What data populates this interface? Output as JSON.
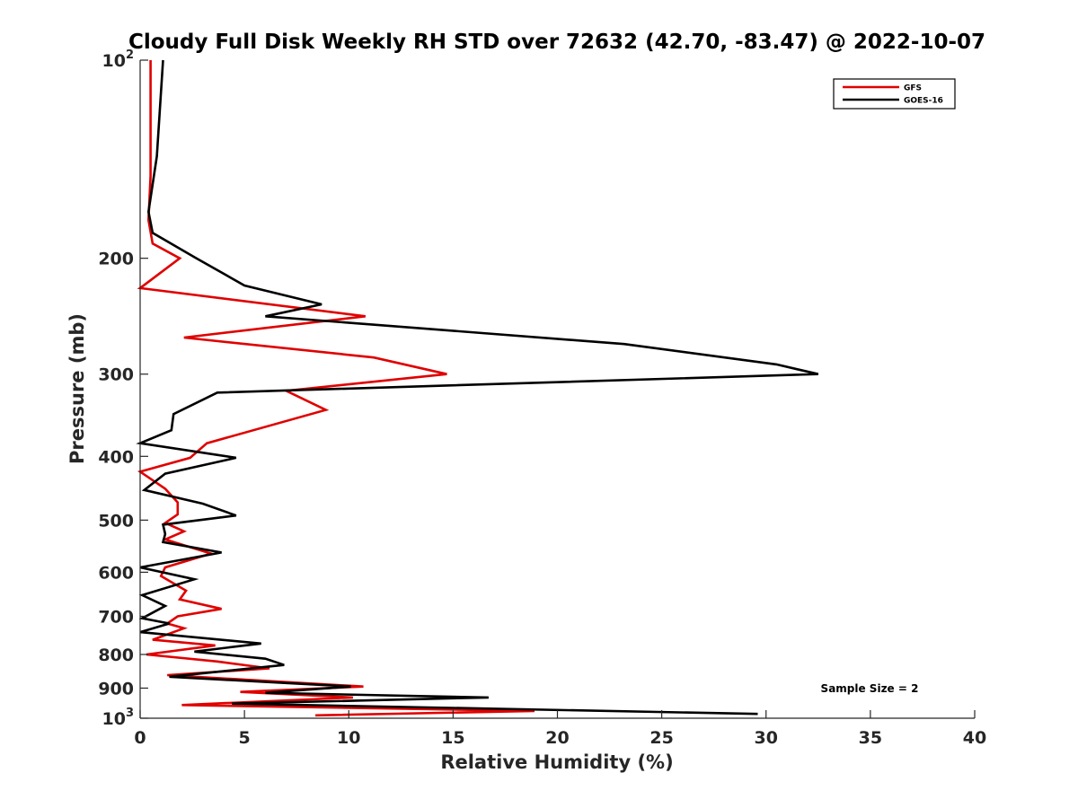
{
  "chart_data": {
    "type": "line",
    "title": "Cloudy Full Disk Weekly RH STD over 72632 (42.70, -83.47) @ 2022-10-07",
    "xlabel": "Relative Humidity (%)",
    "ylabel": "Pressure (mb)",
    "xlim": [
      0,
      40
    ],
    "ylim": [
      100,
      1000
    ],
    "y_scale": "log",
    "y_reversed": true,
    "grid": false,
    "legend_position": "top-right",
    "x_ticks": [
      "0",
      "5",
      "10",
      "15",
      "20",
      "25",
      "30",
      "35",
      "40"
    ],
    "y_ticks": [
      {
        "value": 100,
        "label": "10",
        "sup": "2"
      },
      {
        "value": 200,
        "label": "200"
      },
      {
        "value": 300,
        "label": "300"
      },
      {
        "value": 400,
        "label": "400"
      },
      {
        "value": 500,
        "label": "500"
      },
      {
        "value": 600,
        "label": "600"
      },
      {
        "value": 700,
        "label": "700"
      },
      {
        "value": 800,
        "label": "800"
      },
      {
        "value": 900,
        "label": "900"
      },
      {
        "value": 1000,
        "label": "10",
        "sup": "3"
      }
    ],
    "annotation": "Sample Size = 2",
    "series": [
      {
        "name": "GFS",
        "color": "#e00000",
        "points": [
          [
            0.5,
            100
          ],
          [
            0.5,
            150
          ],
          [
            0.4,
            175
          ],
          [
            0.6,
            190
          ],
          [
            1.9,
            200
          ],
          [
            0.0,
            222
          ],
          [
            10.8,
            245
          ],
          [
            2.1,
            264
          ],
          [
            11.2,
            283
          ],
          [
            14.7,
            300
          ],
          [
            7.0,
            318
          ],
          [
            8.9,
            340
          ],
          [
            3.2,
            382
          ],
          [
            2.4,
            402
          ],
          [
            0.0,
            422
          ],
          [
            1.2,
            448
          ],
          [
            1.8,
            470
          ],
          [
            1.8,
            490
          ],
          [
            1.2,
            505
          ],
          [
            2.1,
            520
          ],
          [
            1.2,
            535
          ],
          [
            3.4,
            562
          ],
          [
            1.2,
            590
          ],
          [
            1.0,
            608
          ],
          [
            2.2,
            640
          ],
          [
            1.9,
            660
          ],
          [
            3.9,
            682
          ],
          [
            1.8,
            700
          ],
          [
            1.3,
            718
          ],
          [
            2.1,
            730
          ],
          [
            0.6,
            760
          ],
          [
            3.6,
            775
          ],
          [
            0.3,
            800
          ],
          [
            3.7,
            820
          ],
          [
            6.2,
            840
          ],
          [
            1.3,
            860
          ],
          [
            10.7,
            895
          ],
          [
            4.8,
            912
          ],
          [
            10.2,
            930
          ],
          [
            2.0,
            955
          ],
          [
            18.9,
            975
          ],
          [
            8.4,
            990
          ]
        ]
      },
      {
        "name": "GOES-16",
        "color": "#000000",
        "points": [
          [
            1.1,
            100
          ],
          [
            0.8,
            140
          ],
          [
            0.4,
            170
          ],
          [
            0.6,
            183
          ],
          [
            2.7,
            200
          ],
          [
            5.0,
            220
          ],
          [
            8.7,
            235
          ],
          [
            6.0,
            245
          ],
          [
            23.2,
            270
          ],
          [
            30.5,
            290
          ],
          [
            32.5,
            300
          ],
          [
            3.7,
            320
          ],
          [
            1.6,
            345
          ],
          [
            1.5,
            365
          ],
          [
            0.0,
            382
          ],
          [
            4.6,
            402
          ],
          [
            1.2,
            425
          ],
          [
            0.2,
            450
          ],
          [
            3.0,
            472
          ],
          [
            4.6,
            492
          ],
          [
            1.1,
            508
          ],
          [
            1.2,
            525
          ],
          [
            1.1,
            540
          ],
          [
            3.9,
            560
          ],
          [
            0.0,
            590
          ],
          [
            2.6,
            615
          ],
          [
            0.1,
            650
          ],
          [
            1.2,
            675
          ],
          [
            0.1,
            705
          ],
          [
            1.4,
            718
          ],
          [
            0.0,
            740
          ],
          [
            5.8,
            770
          ],
          [
            2.6,
            792
          ],
          [
            6.0,
            812
          ],
          [
            6.9,
            830
          ],
          [
            1.4,
            865
          ],
          [
            10.1,
            895
          ],
          [
            6.0,
            915
          ],
          [
            16.7,
            930
          ],
          [
            4.4,
            950
          ],
          [
            29.6,
            985
          ]
        ]
      }
    ]
  }
}
